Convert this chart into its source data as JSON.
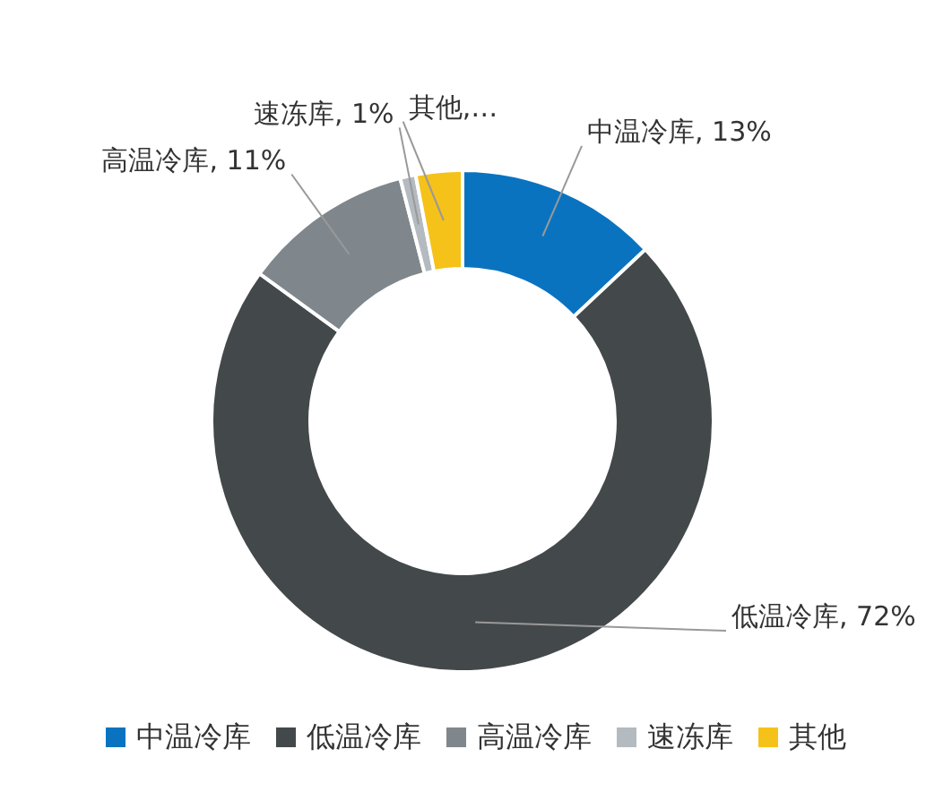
{
  "chart_data": {
    "type": "donut",
    "categories": [
      "中温冷库",
      "低温冷库",
      "高温冷库",
      "速冻库",
      "其他"
    ],
    "values": [
      13,
      72,
      11,
      1,
      3
    ],
    "value_labels": [
      "中温冷库, 13%",
      "低温冷库, 72%",
      "高温冷库, 11%",
      "速冻库, 1%",
      "其他,…"
    ],
    "colors": [
      "#0a73c0",
      "#43484b",
      "#7f878c",
      "#b3bac0",
      "#f5c219"
    ],
    "legend": "bottom"
  }
}
